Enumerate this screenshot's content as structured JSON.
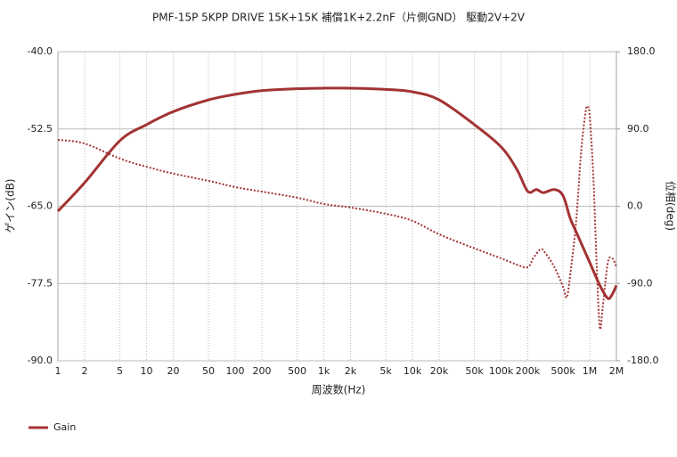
{
  "chart_data": {
    "type": "line",
    "title": "PMF-15P 5KPP DRIVE 15K+15K 補償1K+2.2nF（片側GND） 駆動2V+2V",
    "x_label": "周波数(Hz)",
    "y_label": "ゲイン(dB)",
    "y2_label": "位相(deg)",
    "x_log": true,
    "grid": true,
    "legend": "bottom-left",
    "xlim": [
      1,
      2000000
    ],
    "xticks": [
      1,
      2,
      5,
      10,
      20,
      50,
      100,
      200,
      500,
      {
        "value": 1000,
        "label": "1k"
      },
      {
        "value": 2000,
        "label": "2k"
      },
      {
        "value": 5000,
        "label": "5k"
      },
      {
        "value": 10000,
        "label": "10k"
      },
      {
        "value": 20000,
        "label": "20k"
      },
      {
        "value": 50000,
        "label": "50k"
      },
      {
        "value": 100000,
        "label": "100k"
      },
      {
        "value": 200000,
        "label": "200k"
      },
      {
        "value": 500000,
        "label": "500k"
      },
      {
        "value": 1000000,
        "label": "1M"
      },
      {
        "value": 2000000,
        "label": "2M"
      }
    ],
    "ylim": [
      -90,
      -40
    ],
    "yticks": [
      {
        "value": -90,
        "label": "-90.0"
      },
      -77.5,
      {
        "value": -65,
        "label": "-65.0"
      },
      -52.5,
      {
        "value": -40,
        "label": "-40.0"
      }
    ],
    "y2lim": [
      -180,
      180
    ],
    "y2ticks": [
      {
        "value": -180,
        "label": "-180.0"
      },
      {
        "value": -90,
        "label": "-90.0"
      },
      {
        "value": 0,
        "label": "0.0"
      },
      {
        "value": 90,
        "label": "90.0"
      },
      {
        "value": 180,
        "label": "180.0"
      }
    ],
    "series": [
      {
        "name": "Gain",
        "color": "#a33333",
        "style": "solid",
        "x": [
          1,
          2,
          5,
          10,
          20,
          50,
          100,
          200,
          500,
          1000,
          2000,
          5000,
          10000,
          20000,
          50000,
          100000,
          150000,
          200000,
          250000,
          300000,
          400000,
          500000,
          600000,
          700000,
          1000000,
          1300000,
          1600000,
          1800000,
          2000000
        ],
        "values": [
          -65.8,
          -61.2,
          -54.4,
          -51.8,
          -49.7,
          -47.8,
          -46.9,
          -46.3,
          -46.0,
          -45.9,
          -45.9,
          -46.1,
          -46.5,
          -47.8,
          -51.8,
          -55.4,
          -59.0,
          -62.6,
          -62.3,
          -62.8,
          -62.3,
          -63.3,
          -66.9,
          -69.1,
          -74.1,
          -77.8,
          -79.9,
          -79.2,
          -77.8
        ]
      },
      {
        "color": "#a33333",
        "style": "dotted",
        "axis": "y2",
        "x": [
          1,
          2,
          5,
          10,
          20,
          50,
          100,
          200,
          500,
          1000,
          2000,
          5000,
          10000,
          20000,
          50000,
          100000,
          150000,
          200000,
          230000,
          280000,
          320000,
          400000,
          500000,
          550000,
          600000,
          700000,
          800000,
          900000,
          950000,
          1000000,
          1100000,
          1200000,
          1300000,
          1400000,
          1600000,
          1800000,
          2000000
        ],
        "values": [
          77.3,
          73,
          55.5,
          46,
          38,
          29.6,
          22.3,
          17,
          10,
          2.6,
          -1.5,
          -8.8,
          -17,
          -32.7,
          -49,
          -60.7,
          -68,
          -71,
          -60.7,
          -50,
          -55.5,
          -71,
          -94,
          -106.3,
          -81.4,
          -19.2,
          64,
          110.5,
          115.7,
          105,
          32.7,
          -71,
          -141.6,
          -117.7,
          -65.8,
          -60.7,
          -71
        ]
      }
    ]
  }
}
